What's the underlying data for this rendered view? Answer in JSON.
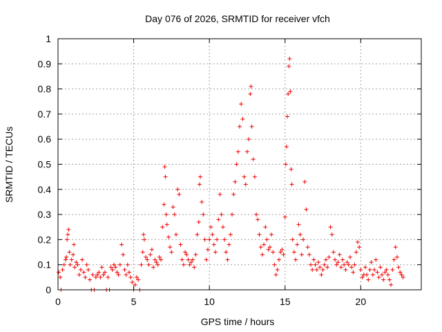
{
  "chart_data": {
    "type": "scatter",
    "title": "Day 076 of 2026, SRMTID for receiver vfch",
    "xlabel": "GPS time / hours",
    "ylabel": "SRMTID / TECUs",
    "xlim": [
      0,
      24
    ],
    "ylim": [
      0,
      1
    ],
    "xticks": [
      0,
      5,
      10,
      15,
      20
    ],
    "xtick_labels": [
      "0",
      "5",
      "10",
      "15",
      "20"
    ],
    "yticks": [
      0,
      0.1,
      0.2,
      0.3,
      0.4,
      0.5,
      0.6,
      0.7,
      0.8,
      0.9,
      1
    ],
    "ytick_labels": [
      "0",
      "0.1",
      "0.2",
      "0.3",
      "0.4",
      "0.5",
      "0.6",
      "0.7",
      "0.8",
      "0.9",
      "1"
    ],
    "grid": true,
    "marker": "+",
    "color": "#ee0000",
    "series": [
      {
        "name": "SRMTID",
        "points": [
          [
            0.05,
            0.07
          ],
          [
            0.15,
            0.05
          ],
          [
            0.2,
            0.0
          ],
          [
            0.3,
            0.08
          ],
          [
            0.4,
            0.1
          ],
          [
            0.5,
            0.12
          ],
          [
            0.55,
            0.13
          ],
          [
            0.6,
            0.2
          ],
          [
            0.65,
            0.22
          ],
          [
            0.7,
            0.24
          ],
          [
            0.75,
            0.15
          ],
          [
            0.8,
            0.1
          ],
          [
            0.9,
            0.12
          ],
          [
            1.0,
            0.14
          ],
          [
            1.05,
            0.18
          ],
          [
            1.1,
            0.09
          ],
          [
            1.2,
            0.11
          ],
          [
            1.3,
            0.1
          ],
          [
            1.4,
            0.06
          ],
          [
            1.5,
            0.08
          ],
          [
            1.6,
            0.12
          ],
          [
            1.7,
            0.07
          ],
          [
            1.8,
            0.05
          ],
          [
            1.9,
            0.1
          ],
          [
            2.0,
            0.08
          ],
          [
            2.1,
            0.04
          ],
          [
            2.2,
            0.0
          ],
          [
            2.3,
            0.06
          ],
          [
            2.4,
            0.0
          ],
          [
            2.5,
            0.05
          ],
          [
            2.6,
            0.06
          ],
          [
            2.7,
            0.07
          ],
          [
            2.8,
            0.05
          ],
          [
            2.9,
            0.09
          ],
          [
            3.0,
            0.06
          ],
          [
            3.1,
            0.07
          ],
          [
            3.2,
            0.0
          ],
          [
            3.3,
            0.05
          ],
          [
            3.4,
            0.0
          ],
          [
            3.5,
            0.09
          ],
          [
            3.6,
            0.08
          ],
          [
            3.7,
            0.1
          ],
          [
            3.8,
            0.09
          ],
          [
            3.9,
            0.07
          ],
          [
            4.0,
            0.06
          ],
          [
            4.1,
            0.1
          ],
          [
            4.2,
            0.18
          ],
          [
            4.3,
            0.14
          ],
          [
            4.4,
            0.08
          ],
          [
            4.5,
            0.06
          ],
          [
            4.6,
            0.1
          ],
          [
            4.7,
            0.07
          ],
          [
            4.8,
            0.05
          ],
          [
            4.9,
            0.03
          ],
          [
            5.0,
            0.0
          ],
          [
            5.1,
            0.02
          ],
          [
            5.2,
            0.05
          ],
          [
            5.3,
            0.04
          ],
          [
            5.4,
            0.0
          ],
          [
            5.5,
            0.1
          ],
          [
            5.6,
            0.15
          ],
          [
            5.65,
            0.22
          ],
          [
            5.7,
            0.2
          ],
          [
            5.8,
            0.13
          ],
          [
            5.9,
            0.12
          ],
          [
            6.0,
            0.1
          ],
          [
            6.1,
            0.14
          ],
          [
            6.2,
            0.16
          ],
          [
            6.3,
            0.09
          ],
          [
            6.4,
            0.12
          ],
          [
            6.5,
            0.11
          ],
          [
            6.6,
            0.1
          ],
          [
            6.7,
            0.13
          ],
          [
            6.8,
            0.12
          ],
          [
            6.9,
            0.25
          ],
          [
            7.0,
            0.34
          ],
          [
            7.05,
            0.49
          ],
          [
            7.1,
            0.45
          ],
          [
            7.15,
            0.3
          ],
          [
            7.2,
            0.26
          ],
          [
            7.3,
            0.21
          ],
          [
            7.4,
            0.17
          ],
          [
            7.5,
            0.15
          ],
          [
            7.6,
            0.33
          ],
          [
            7.7,
            0.3
          ],
          [
            7.8,
            0.22
          ],
          [
            7.9,
            0.4
          ],
          [
            8.0,
            0.38
          ],
          [
            8.1,
            0.18
          ],
          [
            8.2,
            0.12
          ],
          [
            8.3,
            0.1
          ],
          [
            8.4,
            0.15
          ],
          [
            8.5,
            0.14
          ],
          [
            8.6,
            0.12
          ],
          [
            8.7,
            0.1
          ],
          [
            8.8,
            0.11
          ],
          [
            8.9,
            0.12
          ],
          [
            9.0,
            0.09
          ],
          [
            9.1,
            0.14
          ],
          [
            9.2,
            0.22
          ],
          [
            9.3,
            0.27
          ],
          [
            9.35,
            0.42
          ],
          [
            9.4,
            0.45
          ],
          [
            9.5,
            0.35
          ],
          [
            9.6,
            0.3
          ],
          [
            9.7,
            0.2
          ],
          [
            9.8,
            0.12
          ],
          [
            9.9,
            0.16
          ],
          [
            10.0,
            0.2
          ],
          [
            10.1,
            0.25
          ],
          [
            10.2,
            0.22
          ],
          [
            10.3,
            0.18
          ],
          [
            10.4,
            0.15
          ],
          [
            10.5,
            0.2
          ],
          [
            10.6,
            0.28
          ],
          [
            10.7,
            0.38
          ],
          [
            10.8,
            0.3
          ],
          [
            10.9,
            0.25
          ],
          [
            11.0,
            0.2
          ],
          [
            11.1,
            0.15
          ],
          [
            11.2,
            0.12
          ],
          [
            11.3,
            0.18
          ],
          [
            11.4,
            0.22
          ],
          [
            11.5,
            0.3
          ],
          [
            11.6,
            0.38
          ],
          [
            11.7,
            0.43
          ],
          [
            11.8,
            0.5
          ],
          [
            11.9,
            0.55
          ],
          [
            12.0,
            0.65
          ],
          [
            12.1,
            0.74
          ],
          [
            12.2,
            0.68
          ],
          [
            12.3,
            0.45
          ],
          [
            12.4,
            0.42
          ],
          [
            12.5,
            0.55
          ],
          [
            12.6,
            0.6
          ],
          [
            12.7,
            0.78
          ],
          [
            12.75,
            0.81
          ],
          [
            12.8,
            0.65
          ],
          [
            12.9,
            0.52
          ],
          [
            13.0,
            0.45
          ],
          [
            13.1,
            0.3
          ],
          [
            13.2,
            0.28
          ],
          [
            13.3,
            0.22
          ],
          [
            13.4,
            0.17
          ],
          [
            13.5,
            0.14
          ],
          [
            13.6,
            0.18
          ],
          [
            13.7,
            0.25
          ],
          [
            13.8,
            0.2
          ],
          [
            13.9,
            0.16
          ],
          [
            14.0,
            0.17
          ],
          [
            14.1,
            0.22
          ],
          [
            14.2,
            0.15
          ],
          [
            14.3,
            0.1
          ],
          [
            14.4,
            0.06
          ],
          [
            14.5,
            0.08
          ],
          [
            14.6,
            0.12
          ],
          [
            14.7,
            0.15
          ],
          [
            14.8,
            0.16
          ],
          [
            14.9,
            0.14
          ],
          [
            15.0,
            0.29
          ],
          [
            15.05,
            0.5
          ],
          [
            15.1,
            0.57
          ],
          [
            15.15,
            0.69
          ],
          [
            15.2,
            0.78
          ],
          [
            15.25,
            0.89
          ],
          [
            15.3,
            0.92
          ],
          [
            15.35,
            0.79
          ],
          [
            15.4,
            0.48
          ],
          [
            15.45,
            0.42
          ],
          [
            15.5,
            0.2
          ],
          [
            15.6,
            0.15
          ],
          [
            15.7,
            0.12
          ],
          [
            15.8,
            0.18
          ],
          [
            15.9,
            0.26
          ],
          [
            16.0,
            0.22
          ],
          [
            16.1,
            0.14
          ],
          [
            16.2,
            0.2
          ],
          [
            16.3,
            0.43
          ],
          [
            16.4,
            0.32
          ],
          [
            16.5,
            0.17
          ],
          [
            16.6,
            0.14
          ],
          [
            16.7,
            0.1
          ],
          [
            16.8,
            0.08
          ],
          [
            16.9,
            0.12
          ],
          [
            17.0,
            0.1
          ],
          [
            17.1,
            0.08
          ],
          [
            17.2,
            0.11
          ],
          [
            17.3,
            0.09
          ],
          [
            17.4,
            0.06
          ],
          [
            17.5,
            0.08
          ],
          [
            17.6,
            0.1
          ],
          [
            17.7,
            0.12
          ],
          [
            17.8,
            0.09
          ],
          [
            17.9,
            0.13
          ],
          [
            18.0,
            0.25
          ],
          [
            18.1,
            0.22
          ],
          [
            18.2,
            0.15
          ],
          [
            18.3,
            0.12
          ],
          [
            18.4,
            0.1
          ],
          [
            18.5,
            0.11
          ],
          [
            18.6,
            0.14
          ],
          [
            18.7,
            0.09
          ],
          [
            18.8,
            0.12
          ],
          [
            18.9,
            0.1
          ],
          [
            19.0,
            0.08
          ],
          [
            19.1,
            0.11
          ],
          [
            19.2,
            0.1
          ],
          [
            19.3,
            0.13
          ],
          [
            19.4,
            0.09
          ],
          [
            19.5,
            0.07
          ],
          [
            19.6,
            0.1
          ],
          [
            19.7,
            0.15
          ],
          [
            19.8,
            0.19
          ],
          [
            19.9,
            0.17
          ],
          [
            20.0,
            0.08
          ],
          [
            20.1,
            0.05
          ],
          [
            20.2,
            0.06
          ],
          [
            20.3,
            0.09
          ],
          [
            20.4,
            0.06
          ],
          [
            20.5,
            0.04
          ],
          [
            20.6,
            0.08
          ],
          [
            20.7,
            0.11
          ],
          [
            20.8,
            0.06
          ],
          [
            20.9,
            0.08
          ],
          [
            21.0,
            0.12
          ],
          [
            21.1,
            0.07
          ],
          [
            21.2,
            0.05
          ],
          [
            21.3,
            0.09
          ],
          [
            21.4,
            0.06
          ],
          [
            21.5,
            0.04
          ],
          [
            21.6,
            0.07
          ],
          [
            21.7,
            0.08
          ],
          [
            21.8,
            0.06
          ],
          [
            21.9,
            0.04
          ],
          [
            22.0,
            0.02
          ],
          [
            22.1,
            0.08
          ],
          [
            22.2,
            0.12
          ],
          [
            22.3,
            0.17
          ],
          [
            22.4,
            0.13
          ],
          [
            22.5,
            0.09
          ],
          [
            22.6,
            0.07
          ],
          [
            22.7,
            0.06
          ],
          [
            22.8,
            0.05
          ]
        ]
      }
    ]
  }
}
